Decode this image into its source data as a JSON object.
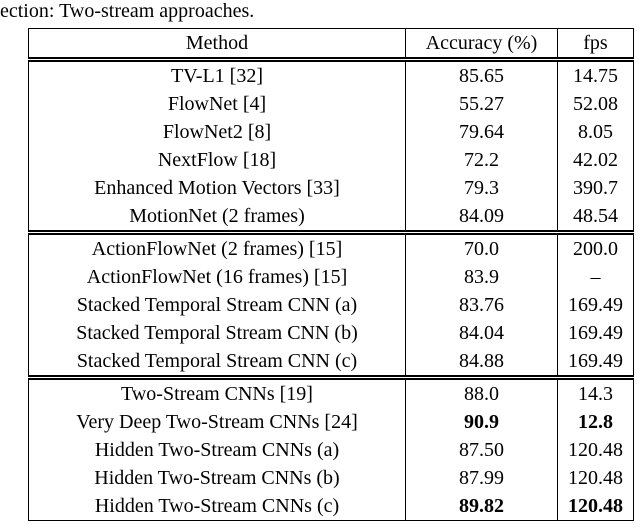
{
  "caption": "ection: Two-stream approaches.",
  "table": {
    "header": [
      "Method",
      "Accuracy (%)",
      "fps"
    ],
    "groups": [
      {
        "rows": [
          [
            "TV-L1 [32]",
            "85.65",
            "14.75"
          ],
          [
            "FlowNet [4]",
            "55.27",
            "52.08"
          ],
          [
            "FlowNet2 [8]",
            "79.64",
            "8.05"
          ],
          [
            "NextFlow [18]",
            "72.2",
            "42.02"
          ],
          [
            "Enhanced Motion Vectors [33]",
            "79.3",
            "390.7"
          ],
          [
            "MotionNet (2 frames)",
            "84.09",
            "48.54"
          ]
        ]
      },
      {
        "rows": [
          [
            "ActionFlowNet (2 frames) [15]",
            "70.0",
            "200.0"
          ],
          [
            "ActionFlowNet (16 frames) [15]",
            "83.9",
            "–"
          ],
          [
            "Stacked Temporal Stream CNN (a)",
            "83.76",
            "169.49"
          ],
          [
            "Stacked Temporal Stream CNN (b)",
            "84.04",
            "169.49"
          ],
          [
            "Stacked Temporal Stream CNN (c)",
            "84.88",
            "169.49"
          ]
        ]
      },
      {
        "rows": [
          [
            "Two-Stream CNNs [19]",
            "88.0",
            "14.3"
          ],
          [
            "Very Deep Two-Stream CNNs [24]",
            "90.9",
            "12.8"
          ],
          [
            "Hidden Two-Stream CNNs (a)",
            "87.50",
            "120.48"
          ],
          [
            "Hidden Two-Stream CNNs (b)",
            "87.99",
            "120.48"
          ],
          [
            "Hidden Two-Stream CNNs (c)",
            "89.82",
            "120.48"
          ]
        ]
      }
    ]
  }
}
